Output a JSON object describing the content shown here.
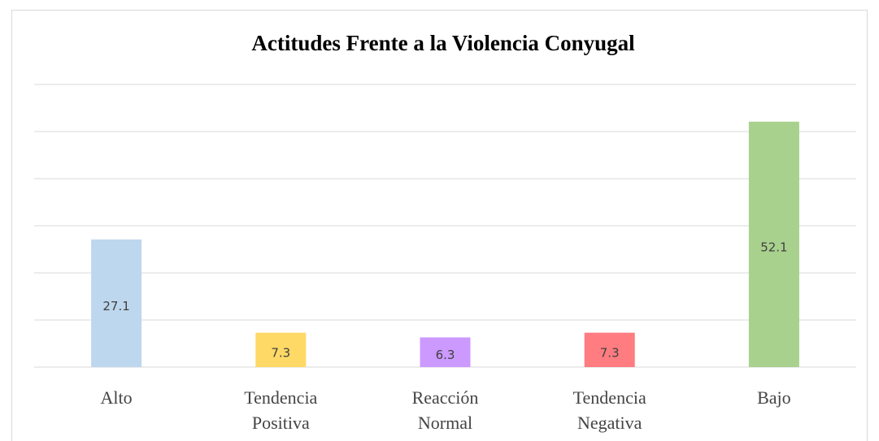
{
  "chart_data": {
    "type": "bar",
    "title": "Actitudes Frente a la Violencia Conyugal",
    "categories": [
      "Alto",
      "Tendencia Positiva",
      "Reacción Normal",
      "Tendencia Negativa",
      "Bajo"
    ],
    "values": [
      27.1,
      7.3,
      6.3,
      7.3,
      52.1
    ],
    "colors": [
      "#bdd7ee",
      "#ffd966",
      "#cc99ff",
      "#ff7c80",
      "#a9d18e"
    ],
    "ylim": [
      0,
      60
    ],
    "yticks": [
      0,
      10,
      20,
      30,
      40,
      50,
      60
    ],
    "grid": true
  }
}
